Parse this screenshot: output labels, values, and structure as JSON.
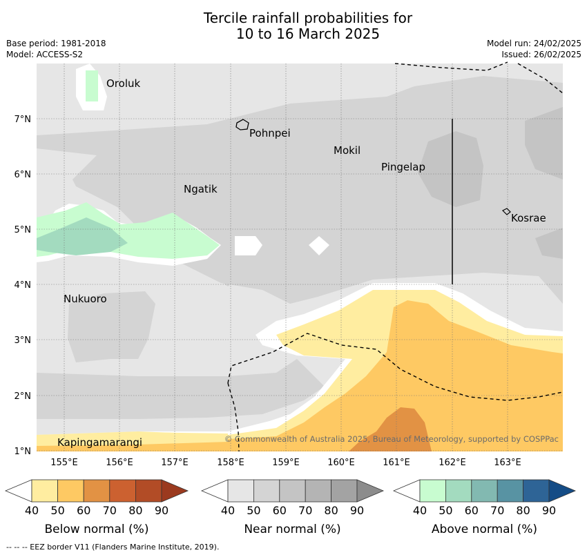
{
  "title_line1": "Tercile rainfall probabilities for",
  "title_line2": "10 to 16 March 2025",
  "meta_left": [
    "Base period: 1981-2018",
    "Model: ACCESS-S2"
  ],
  "meta_right": [
    "Model run: 24/02/2025",
    "Issued: 26/02/2025"
  ],
  "lat_labels": [
    "7°N",
    "6°N",
    "5°N",
    "4°N",
    "3°N",
    "2°N",
    "1°N"
  ],
  "lon_labels": [
    "155°E",
    "156°E",
    "157°E",
    "158°E",
    "159°E",
    "160°E",
    "161°E",
    "162°E",
    "163°E"
  ],
  "places": [
    {
      "name": "Oroluk"
    },
    {
      "name": "Pohnpei"
    },
    {
      "name": "Mokil"
    },
    {
      "name": "Pingelap"
    },
    {
      "name": "Ngatik"
    },
    {
      "name": "Kosrae"
    },
    {
      "name": "Nukuoro"
    },
    {
      "name": "Kapingamarangi"
    }
  ],
  "copyright": "© Commonwealth of Australia 2025, Bureau of Meteorology, supported by COSPPac",
  "colorbars": [
    {
      "label": "Below normal (%)",
      "ticks": [
        "40",
        "50",
        "60",
        "70",
        "80",
        "90"
      ],
      "colors": [
        "#ffffff",
        "#ffeda0",
        "#fec963",
        "#e29244",
        "#cc6130",
        "#b24c26",
        "#9b3a1f"
      ]
    },
    {
      "label": "Near normal (%)",
      "ticks": [
        "40",
        "50",
        "60",
        "70",
        "80",
        "90"
      ],
      "colors": [
        "#ffffff",
        "#e6e6e6",
        "#d4d4d4",
        "#c4c4c4",
        "#b4b4b4",
        "#a3a3a3",
        "#8c8c8c"
      ]
    },
    {
      "label": "Above normal (%)",
      "ticks": [
        "40",
        "50",
        "60",
        "70",
        "80",
        "90"
      ],
      "colors": [
        "#ffffff",
        "#c8fcd0",
        "#a3dbbf",
        "#82b9b1",
        "#5893a3",
        "#2e6496",
        "#144c86"
      ]
    }
  ],
  "footer": "--  --  -- EEZ border V11 (Flanders Marine Institute, 2019)."
}
